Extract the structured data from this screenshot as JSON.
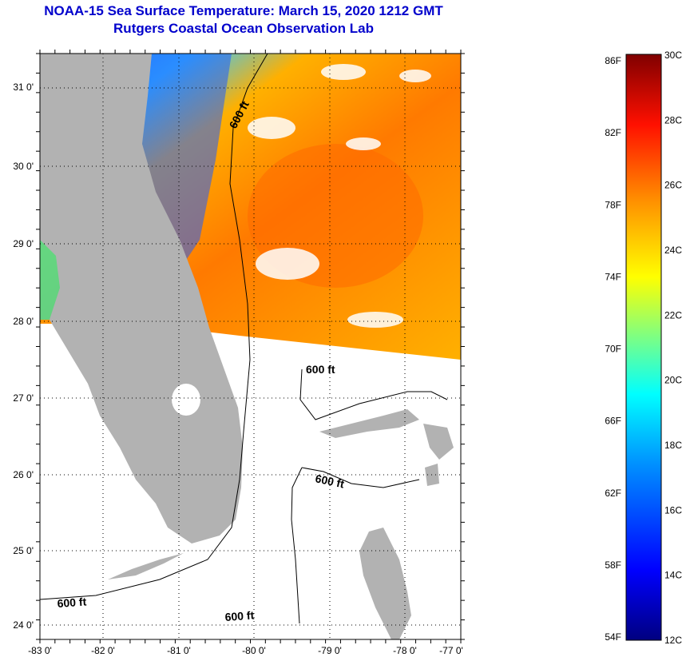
{
  "header": {
    "title": "NOAA-15 Sea Surface Temperature:  March 15, 2020 1212 GMT",
    "subtitle": "Rutgers Coastal Ocean Observation Lab"
  },
  "map": {
    "lon_ticks": [
      "-83 0'",
      "-82 0'",
      "-81 0'",
      "-80 0'",
      "-79 0'",
      "-78 0'",
      "-77 0'"
    ],
    "lat_ticks": [
      "31 0'",
      "30 0'",
      "29 0'",
      "28 0'",
      "27 0'",
      "26 0'",
      "25 0'",
      "24 0'"
    ],
    "contour_labels": [
      "600 ft",
      "600 ft",
      "600 ft",
      "600 ft",
      "600 ft"
    ],
    "land_color": "#b2b2b2",
    "nodata_color": "#ffffff"
  },
  "colorbar": {
    "fahrenheit": [
      "86F",
      "82F",
      "78F",
      "74F",
      "70F",
      "66F",
      "62F",
      "58F",
      "54F"
    ],
    "celsius": [
      "30C",
      "28C",
      "26C",
      "24C",
      "22C",
      "20C",
      "18C",
      "16C",
      "14C",
      "12C"
    ],
    "colors": [
      "#000080",
      "#0000ff",
      "#0080ff",
      "#00ffff",
      "#80ff80",
      "#ffff00",
      "#ff8000",
      "#ff0000",
      "#800000"
    ]
  }
}
